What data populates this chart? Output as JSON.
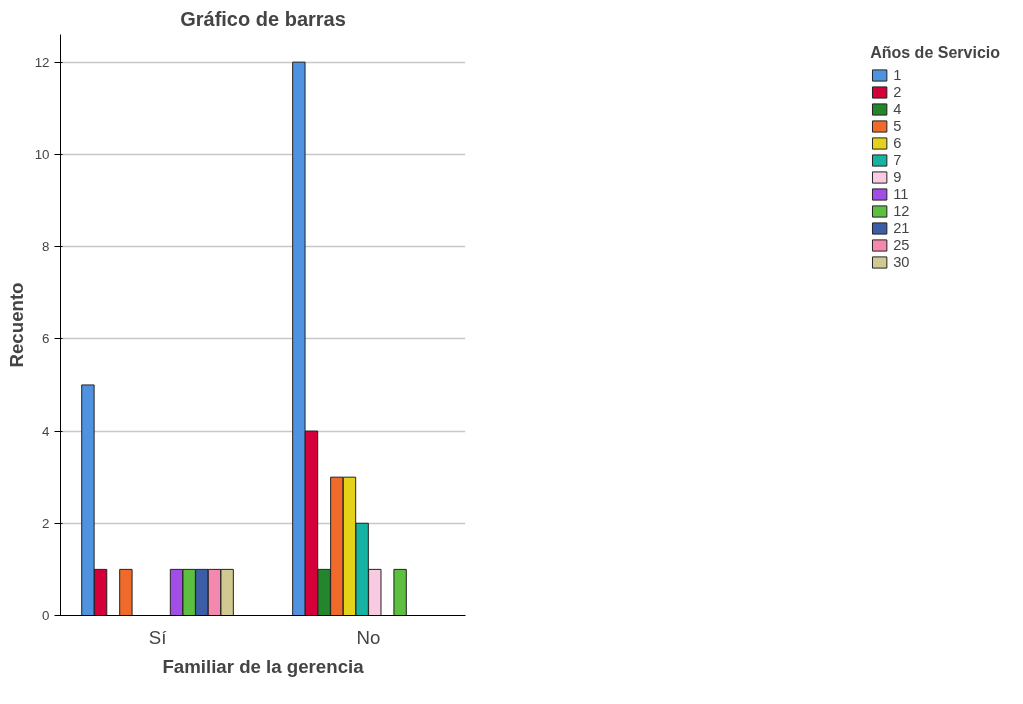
{
  "chart_data": {
    "type": "bar",
    "title": "Gráfico de barras",
    "xlabel": "Familiar de la gerencia",
    "ylabel": "Recuento",
    "legend_title": "Años de Servicio",
    "categories": [
      "Sí",
      "No"
    ],
    "series": [
      {
        "name": "1",
        "color": "#4f93e0",
        "values": [
          5,
          12
        ]
      },
      {
        "name": "2",
        "color": "#d5003a",
        "values": [
          1,
          4
        ]
      },
      {
        "name": "4",
        "color": "#24862c",
        "values": [
          null,
          1
        ]
      },
      {
        "name": "5",
        "color": "#f06a2c",
        "values": [
          1,
          3
        ]
      },
      {
        "name": "6",
        "color": "#e4d21a",
        "values": [
          null,
          3
        ]
      },
      {
        "name": "7",
        "color": "#16b2a2",
        "values": [
          null,
          2
        ]
      },
      {
        "name": "9",
        "color": "#f9cbe3",
        "values": [
          null,
          1
        ]
      },
      {
        "name": "11",
        "color": "#a24ee6",
        "values": [
          1,
          null
        ]
      },
      {
        "name": "12",
        "color": "#5cbf40",
        "values": [
          1,
          1
        ]
      },
      {
        "name": "21",
        "color": "#3b5ea6",
        "values": [
          1,
          null
        ]
      },
      {
        "name": "25",
        "color": "#f588ae",
        "values": [
          1,
          null
        ]
      },
      {
        "name": "30",
        "color": "#d2c992",
        "values": [
          1,
          null
        ]
      }
    ],
    "ylim": [
      0,
      12.6
    ],
    "yticks": [
      0,
      2,
      4,
      6,
      8,
      10,
      12
    ],
    "grid": "y",
    "legend": "right"
  }
}
